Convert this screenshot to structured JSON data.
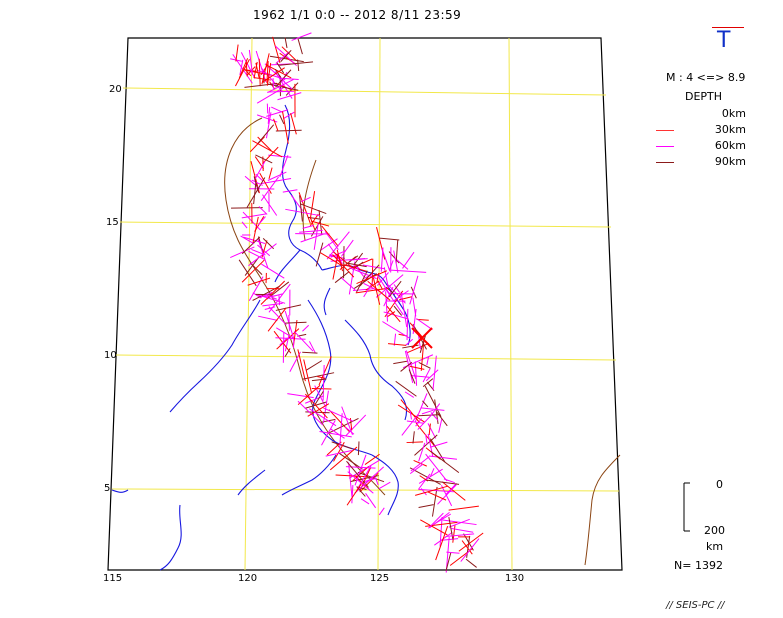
{
  "title": "1962 1/1 0:0 -- 2012 8/11 23:59",
  "mode_glyph": "T",
  "magnitude_range": "M : 4 <=> 8.9",
  "depth_legend": {
    "title": "DEPTH",
    "items": [
      {
        "label": "0km",
        "color": "#ff0000"
      },
      {
        "label": "30km",
        "color": "#ff3333"
      },
      {
        "label": "60km",
        "color": "#ff00ff"
      },
      {
        "label": "90km",
        "color": "#8b1a1a"
      }
    ]
  },
  "scale_bar": {
    "top_label": "0",
    "bottom_label": "200",
    "unit": "km"
  },
  "event_count": "N= 1392",
  "credit": "// SEIS-PC //",
  "axes": {
    "lon_ticks": [
      "115",
      "120",
      "125",
      "130"
    ],
    "lat_ticks": [
      "20",
      "15",
      "10",
      "5"
    ]
  },
  "colors": {
    "grid": "#f2e84a",
    "coastline": "#1818e0",
    "trench": "#8b4513",
    "shallow": "#ff0000",
    "mid": "#ff00ff",
    "deep": "#8b1a1a",
    "mainshock": "#ff0000",
    "frame": "#000000"
  }
}
